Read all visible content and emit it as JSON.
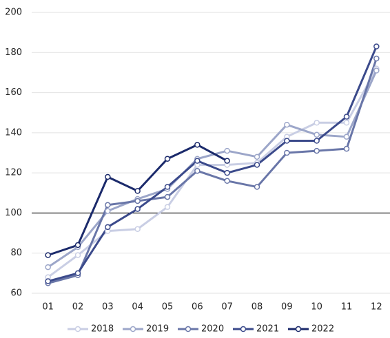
{
  "chart_data": {
    "type": "line",
    "categories": [
      "01",
      "02",
      "03",
      "04",
      "05",
      "06",
      "07",
      "08",
      "09",
      "10",
      "11",
      "12"
    ],
    "series": [
      {
        "name": "2018",
        "color": "#c9cee4",
        "values": [
          68,
          79,
          91,
          92,
          103,
          124,
          124,
          125,
          138,
          145,
          145,
          172
        ]
      },
      {
        "name": "2019",
        "color": "#9ca6c9",
        "values": [
          73,
          83,
          101,
          107,
          112,
          127,
          131,
          128,
          144,
          139,
          138,
          171
        ]
      },
      {
        "name": "2020",
        "color": "#6976a8",
        "values": [
          65,
          69,
          104,
          106,
          108,
          121,
          116,
          113,
          130,
          131,
          132,
          177
        ]
      },
      {
        "name": "2021",
        "color": "#3b4a8b",
        "values": [
          66,
          70,
          93,
          102,
          113,
          126,
          120,
          124,
          136,
          136,
          148,
          183
        ]
      },
      {
        "name": "2022",
        "color": "#1b2a6b",
        "values": [
          79,
          84,
          118,
          111,
          127,
          134,
          126,
          null,
          null,
          null,
          null,
          null
        ]
      }
    ],
    "ylim": [
      60,
      200
    ],
    "yticks": [
      60,
      80,
      100,
      120,
      140,
      160,
      180,
      200
    ],
    "grid": true,
    "reference_line": 100,
    "legend": "bottom"
  }
}
